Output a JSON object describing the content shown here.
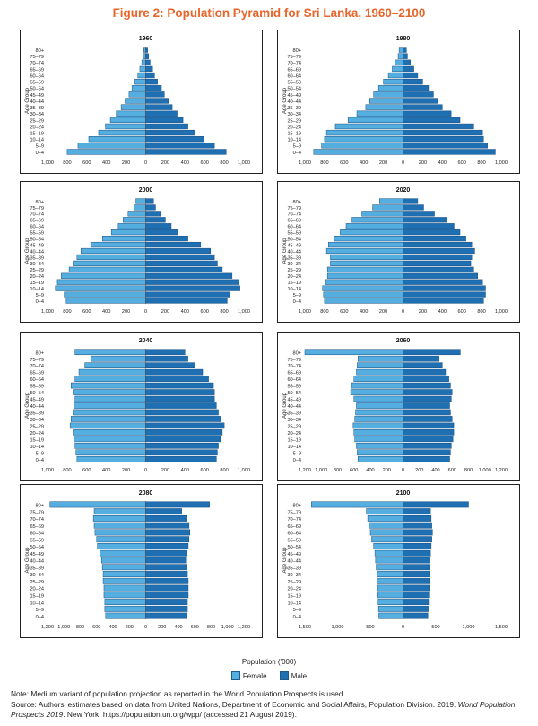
{
  "figure_title": "Figure 2: Population Pyramid for Sri Lanka, 1960–2100",
  "x_axis_title": "Population ('000)",
  "legend": {
    "female": "Female",
    "male": "Male"
  },
  "colors": {
    "female": "#55aee0",
    "male": "#1f6fb3",
    "bar_outline": "#1a4f80"
  },
  "note": "Note: Medium variant of population projection as reported in the World Population Prospects is used.",
  "source_prefix": "Source: Authors' estimates based on data from United Nations, Department of Economic and Social Affairs, Population Division. 2019. ",
  "source_italic": "World Population Prospects 2019",
  "source_suffix": ". New York. https://population.un.org/wpp/ (accessed 21 August 2019).",
  "chart_data": [
    {
      "type": "bar",
      "year": "1960",
      "ylabel": "Age Group",
      "age_groups": [
        "0–4",
        "5–9",
        "10–14",
        "15–19",
        "20–24",
        "25–29",
        "30–34",
        "35–39",
        "40–44",
        "45–49",
        "50–54",
        "55–59",
        "60–64",
        "65–69",
        "70–74",
        "75–79",
        "80+"
      ],
      "xmax": 1000,
      "ticks": [
        "1,000",
        "800",
        "600",
        "400",
        "200",
        "0",
        "200",
        "400",
        "600",
        "800",
        "1,000"
      ],
      "series": [
        {
          "name": "Female",
          "values": [
            800,
            690,
            580,
            480,
            410,
            360,
            300,
            250,
            210,
            170,
            140,
            110,
            80,
            60,
            40,
            25,
            20
          ]
        },
        {
          "name": "Male",
          "values": [
            820,
            700,
            590,
            500,
            430,
            380,
            320,
            270,
            230,
            190,
            160,
            120,
            90,
            70,
            45,
            30,
            20
          ]
        }
      ]
    },
    {
      "type": "bar",
      "year": "1980",
      "ylabel": "Age Group",
      "age_groups": [
        "0–4",
        "5–9",
        "10–14",
        "15–19",
        "20–24",
        "25–29",
        "30–34",
        "35–39",
        "40–44",
        "45–49",
        "50–54",
        "55–59",
        "60–64",
        "65–69",
        "70–74",
        "75–79",
        "80+"
      ],
      "xmax": 1000,
      "ticks": [
        "1,000",
        "800",
        "600",
        "400",
        "200",
        "0",
        "200",
        "400",
        "600",
        "800",
        "1,000"
      ],
      "series": [
        {
          "name": "Female",
          "values": [
            910,
            830,
            800,
            780,
            690,
            560,
            470,
            380,
            340,
            300,
            250,
            200,
            150,
            110,
            80,
            50,
            40
          ]
        },
        {
          "name": "Male",
          "values": [
            940,
            860,
            820,
            810,
            720,
            580,
            490,
            400,
            350,
            310,
            260,
            200,
            150,
            110,
            75,
            45,
            35
          ]
        }
      ]
    },
    {
      "type": "bar",
      "year": "2000",
      "ylabel": "Age Group",
      "age_groups": [
        "0–4",
        "5–9",
        "10–14",
        "15–19",
        "20–24",
        "25–29",
        "30–34",
        "35–39",
        "40–44",
        "45–49",
        "50–54",
        "55–59",
        "60–64",
        "65–69",
        "70–74",
        "75–79",
        "80+"
      ],
      "xmax": 1000,
      "ticks": [
        "1,000",
        "800",
        "600",
        "400",
        "200",
        "0",
        "200",
        "400",
        "600",
        "800",
        "1,000"
      ],
      "series": [
        {
          "name": "Female",
          "values": [
            810,
            830,
            920,
            900,
            860,
            780,
            740,
            700,
            660,
            560,
            440,
            350,
            280,
            230,
            180,
            120,
            100
          ]
        },
        {
          "name": "Male",
          "values": [
            830,
            860,
            960,
            950,
            880,
            780,
            730,
            700,
            660,
            560,
            430,
            330,
            260,
            200,
            150,
            100,
            80
          ]
        }
      ]
    },
    {
      "type": "bar",
      "year": "2020",
      "ylabel": "Age Group",
      "age_groups": [
        "0–4",
        "5–9",
        "10–14",
        "15–19",
        "20–24",
        "25–29",
        "30–34",
        "35–39",
        "40–44",
        "45–49",
        "50–54",
        "55–59",
        "60–64",
        "65–69",
        "70–74",
        "75–79",
        "80+"
      ],
      "xmax": 1000,
      "ticks": [
        "1,000",
        "800",
        "600",
        "400",
        "200",
        "0",
        "200",
        "400",
        "600",
        "800",
        "1,000"
      ],
      "series": [
        {
          "name": "Female",
          "values": [
            800,
            810,
            820,
            790,
            770,
            770,
            740,
            740,
            780,
            760,
            700,
            640,
            580,
            520,
            420,
            310,
            240
          ]
        },
        {
          "name": "Male",
          "values": [
            820,
            840,
            840,
            810,
            760,
            720,
            690,
            700,
            730,
            700,
            640,
            580,
            520,
            440,
            320,
            210,
            150
          ]
        }
      ]
    },
    {
      "type": "bar",
      "year": "2040",
      "ylabel": "Age Group",
      "age_groups": [
        "0–4",
        "5–9",
        "10–14",
        "15–19",
        "20–24",
        "25–29",
        "30–34",
        "35–39",
        "40–44",
        "45–49",
        "50–54",
        "55–59",
        "60–64",
        "65–69",
        "70–74",
        "75–79",
        "80+"
      ],
      "xmax": 1000,
      "ticks": [
        "1,000",
        "800",
        "600",
        "400",
        "200",
        "0",
        "200",
        "400",
        "600",
        "800",
        "1,000"
      ],
      "series": [
        {
          "name": "Female",
          "values": [
            700,
            710,
            720,
            730,
            740,
            770,
            760,
            740,
            730,
            720,
            740,
            760,
            720,
            680,
            620,
            560,
            720
          ]
        },
        {
          "name": "Male",
          "values": [
            720,
            730,
            740,
            760,
            780,
            800,
            770,
            740,
            720,
            700,
            700,
            690,
            640,
            580,
            500,
            430,
            400
          ]
        }
      ]
    },
    {
      "type": "bar",
      "year": "2060",
      "ylabel": "Age Group",
      "age_groups": [
        "0–4",
        "5–9",
        "10–14",
        "15–19",
        "20–24",
        "25–29",
        "30–34",
        "35–39",
        "40–44",
        "45–49",
        "50–54",
        "55–59",
        "60–64",
        "65–69",
        "70–74",
        "75–79",
        "80+"
      ],
      "xmax": 1200,
      "ticks": [
        "1,200",
        "1,000",
        "800",
        "600",
        "400",
        "200",
        "0",
        "200",
        "400",
        "600",
        "800",
        "1,000",
        "1,200"
      ],
      "series": [
        {
          "name": "Female",
          "values": [
            550,
            560,
            570,
            590,
            600,
            610,
            590,
            580,
            570,
            600,
            640,
            630,
            600,
            570,
            560,
            550,
            1200
          ]
        },
        {
          "name": "Male",
          "values": [
            570,
            580,
            590,
            610,
            620,
            620,
            600,
            580,
            570,
            590,
            600,
            580,
            560,
            520,
            480,
            440,
            700
          ]
        }
      ]
    },
    {
      "type": "bar",
      "year": "2080",
      "ylabel": "Age Group",
      "age_groups": [
        "0–4",
        "5–9",
        "10–14",
        "15–19",
        "20–24",
        "25–29",
        "30–34",
        "35–39",
        "40–44",
        "45–49",
        "50–54",
        "55–59",
        "60–64",
        "65–69",
        "70–74",
        "75–79",
        "80+"
      ],
      "xmax": 1200,
      "ticks": [
        "1,200",
        "1,000",
        "800",
        "600",
        "400",
        "200",
        "0",
        "200",
        "400",
        "600",
        "800",
        "1,000",
        "1,200"
      ],
      "series": [
        {
          "name": "Female",
          "values": [
            490,
            500,
            500,
            510,
            510,
            520,
            520,
            530,
            540,
            560,
            590,
            600,
            620,
            630,
            640,
            630,
            1170
          ]
        },
        {
          "name": "Male",
          "values": [
            500,
            510,
            510,
            520,
            520,
            520,
            510,
            500,
            490,
            500,
            520,
            530,
            540,
            530,
            500,
            440,
            780
          ]
        }
      ]
    },
    {
      "type": "bar",
      "year": "2100",
      "ylabel": "Age Group",
      "age_groups": [
        "0–4",
        "5–9",
        "10–14",
        "15–19",
        "20–24",
        "25–29",
        "30–34",
        "35–39",
        "40–44",
        "45–49",
        "50–54",
        "55–59",
        "60–64",
        "65–69",
        "70–74",
        "75–79",
        "80+"
      ],
      "xmax": 1500,
      "ticks": [
        "1,500",
        "1,000",
        "500",
        "0",
        "500",
        "1,000",
        "1,500"
      ],
      "series": [
        {
          "name": "Female",
          "values": [
            370,
            375,
            380,
            385,
            390,
            395,
            400,
            410,
            420,
            430,
            450,
            480,
            500,
            520,
            540,
            560,
            1400
          ]
        },
        {
          "name": "Male",
          "values": [
            380,
            385,
            390,
            395,
            400,
            400,
            400,
            405,
            410,
            420,
            430,
            440,
            450,
            440,
            430,
            420,
            1000
          ]
        }
      ]
    }
  ]
}
